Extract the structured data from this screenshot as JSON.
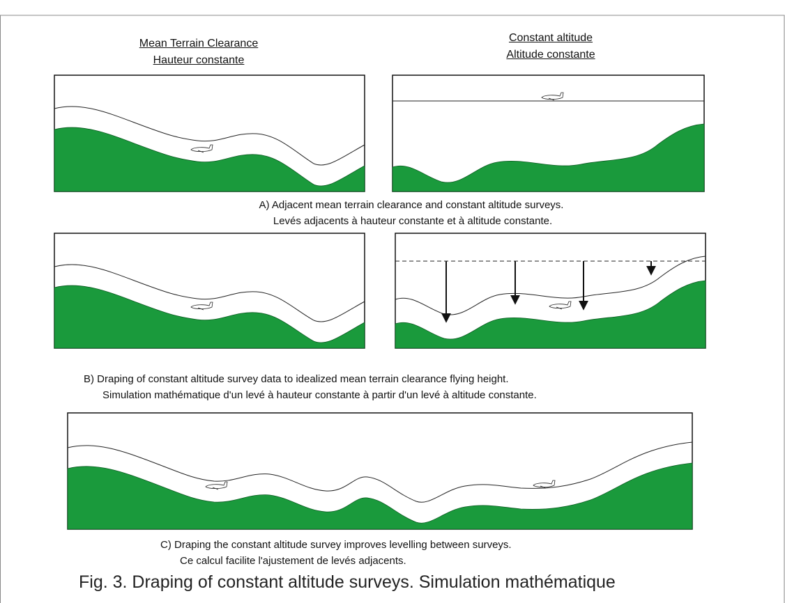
{
  "headings": {
    "left": [
      "Mean Terrain Clearance",
      "Hauteur constante"
    ],
    "right": [
      "Constant altitude",
      "Altitude constante"
    ]
  },
  "captions": {
    "a": [
      "A) Adjacent mean terrain clearance and constant altitude surveys.",
      "Levés adjacents à hauteur constante et à altitude constante."
    ],
    "b": [
      "B) Draping of constant altitude survey data to idealized mean terrain clearance flying height.",
      "Simulation mathématique d'un levé à hauteur constante à partir d'un levé à altitude constante."
    ],
    "c": [
      "C) Draping the constant altitude survey improves levelling between surveys.",
      "Ce calcul facilite l'ajustement de levés adjacents."
    ]
  },
  "figure_title": "Fig. 3. Draping of constant altitude surveys.  Simulation mathématique"
}
